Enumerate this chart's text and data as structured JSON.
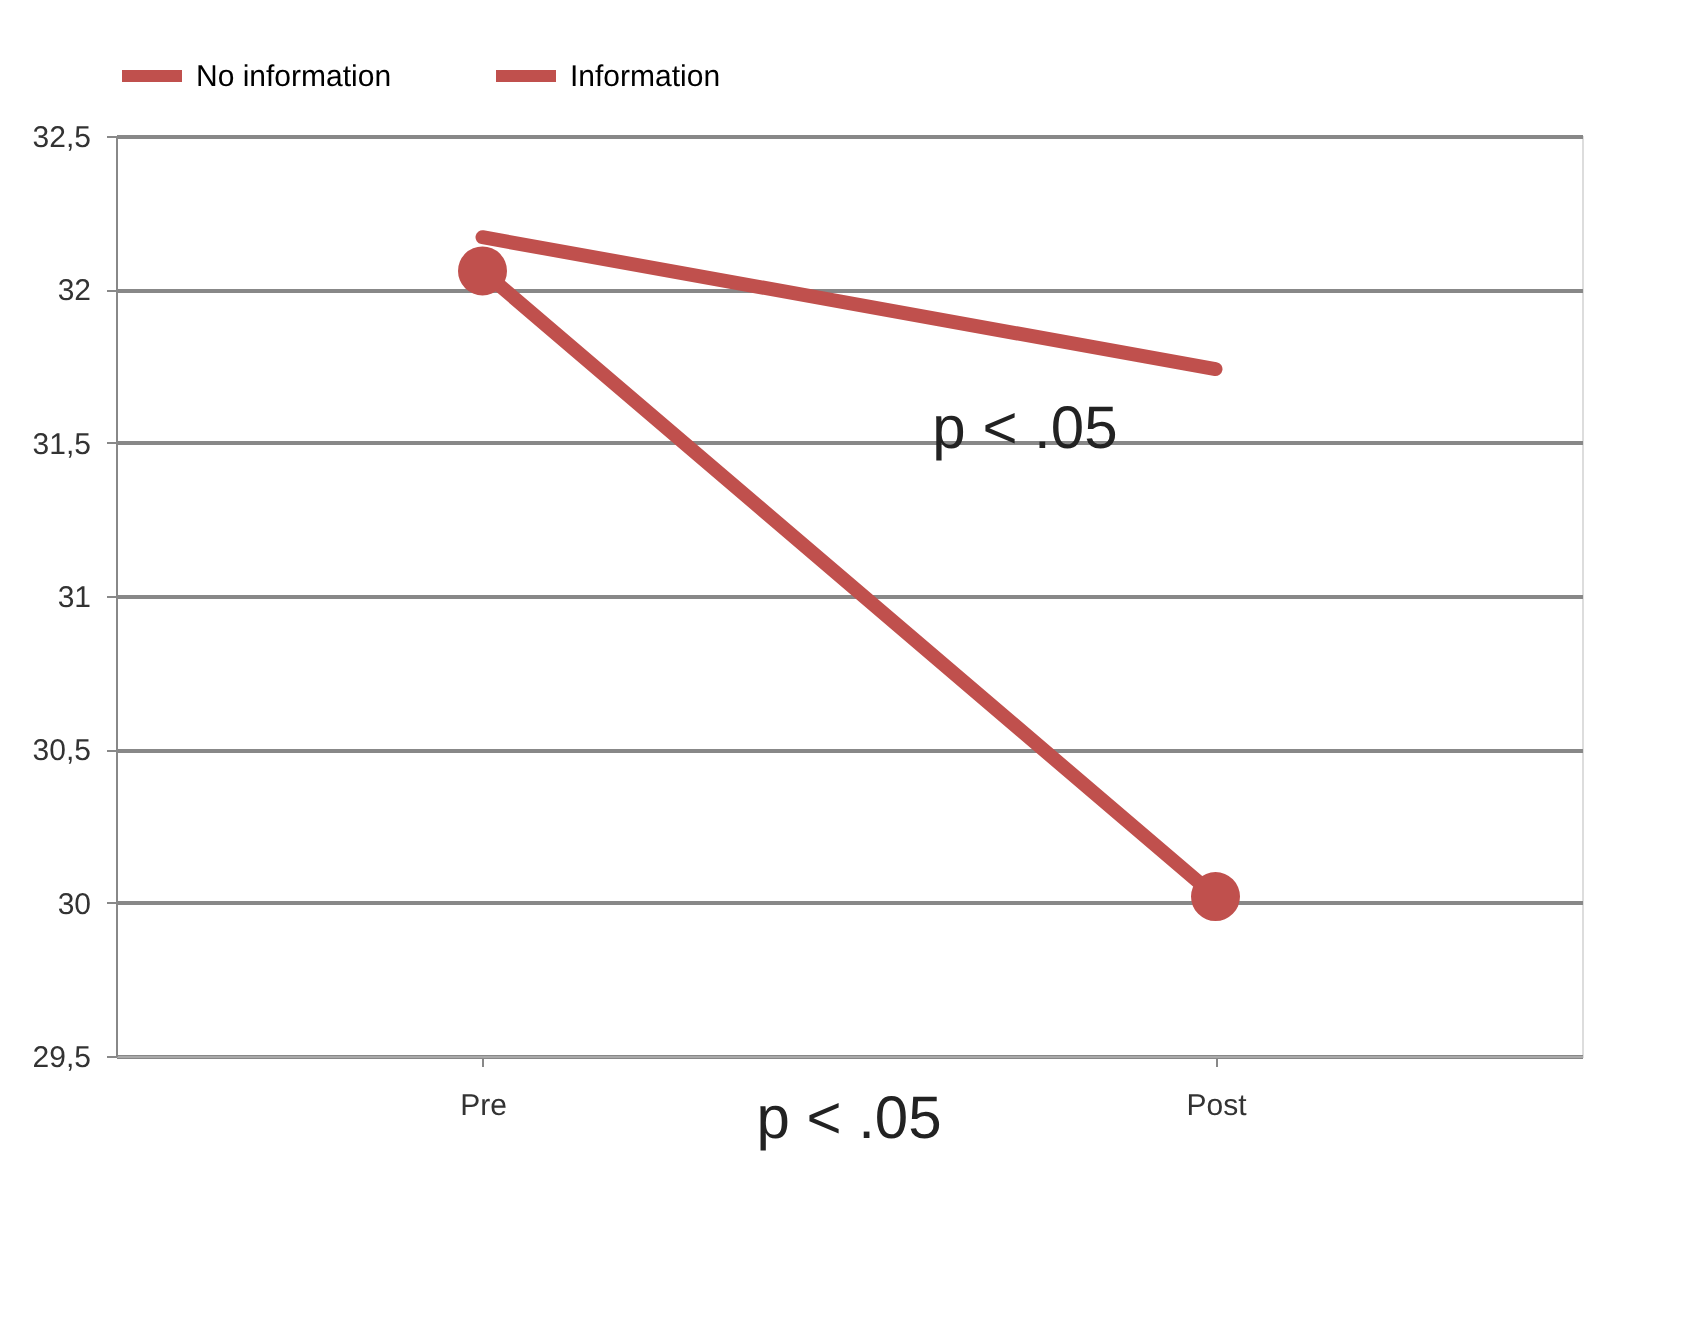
{
  "chart_data": {
    "type": "line",
    "categories": [
      "Pre",
      "Post"
    ],
    "series": [
      {
        "name": "No information",
        "color": "#c0504d",
        "values": [
          32.17,
          31.74
        ],
        "marker": "none"
      },
      {
        "name": "Information",
        "color": "#c0504d",
        "values": [
          32.06,
          30.02
        ],
        "marker": "circle"
      }
    ],
    "ylim": [
      29.5,
      32.5
    ],
    "yticks": [
      {
        "value": 29.5,
        "label": "29,5"
      },
      30,
      {
        "value": 30.5,
        "label": "30,5"
      },
      31,
      {
        "value": 31.5,
        "label": "31,5"
      },
      32,
      {
        "value": 32.5,
        "label": "32,5"
      }
    ],
    "grid": "y",
    "legend": "top",
    "annotations": [
      "p < .05",
      "p < .05"
    ]
  }
}
